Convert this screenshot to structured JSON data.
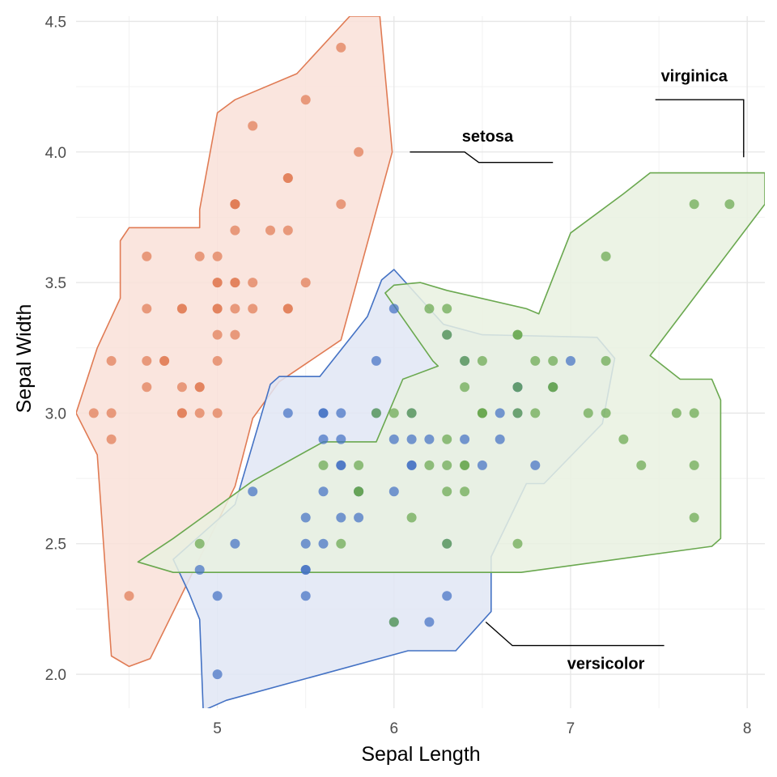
{
  "chart_data": {
    "type": "scatter",
    "title": "",
    "xlabel": "Sepal Length",
    "ylabel": "Sepal Width",
    "xlim": [
      4.2,
      8.1
    ],
    "ylim": [
      1.87,
      4.52
    ],
    "x_ticks": [
      "5",
      "6",
      "7",
      "8"
    ],
    "x_tick_values": [
      5,
      6,
      7,
      8
    ],
    "y_ticks": [
      "2.0",
      "2.5",
      "3.0",
      "3.5",
      "4.0",
      "4.5"
    ],
    "y_tick_values": [
      2.0,
      2.5,
      3.0,
      3.5,
      4.0,
      4.5
    ],
    "grid": true,
    "legend": "none",
    "series": [
      {
        "name": "setosa",
        "color": "#E07B54",
        "points": [
          [
            5.1,
            3.5
          ],
          [
            4.9,
            3.0
          ],
          [
            4.7,
            3.2
          ],
          [
            4.6,
            3.1
          ],
          [
            5.0,
            3.6
          ],
          [
            5.4,
            3.9
          ],
          [
            4.6,
            3.4
          ],
          [
            5.0,
            3.4
          ],
          [
            4.4,
            2.9
          ],
          [
            4.9,
            3.1
          ],
          [
            5.4,
            3.7
          ],
          [
            4.8,
            3.4
          ],
          [
            4.8,
            3.0
          ],
          [
            4.3,
            3.0
          ],
          [
            5.8,
            4.0
          ],
          [
            5.7,
            4.4
          ],
          [
            5.4,
            3.9
          ],
          [
            5.1,
            3.5
          ],
          [
            5.7,
            3.8
          ],
          [
            5.1,
            3.8
          ],
          [
            5.4,
            3.4
          ],
          [
            5.1,
            3.7
          ],
          [
            4.6,
            3.6
          ],
          [
            5.1,
            3.3
          ],
          [
            4.8,
            3.4
          ],
          [
            5.0,
            3.0
          ],
          [
            5.0,
            3.4
          ],
          [
            5.2,
            3.5
          ],
          [
            5.2,
            3.4
          ],
          [
            4.7,
            3.2
          ],
          [
            4.8,
            3.1
          ],
          [
            5.4,
            3.4
          ],
          [
            5.2,
            4.1
          ],
          [
            5.5,
            4.2
          ],
          [
            4.9,
            3.1
          ],
          [
            5.0,
            3.2
          ],
          [
            5.5,
            3.5
          ],
          [
            4.9,
            3.6
          ],
          [
            4.4,
            3.0
          ],
          [
            5.1,
            3.4
          ],
          [
            5.0,
            3.5
          ],
          [
            4.5,
            2.3
          ],
          [
            4.4,
            3.2
          ],
          [
            5.0,
            3.5
          ],
          [
            5.1,
            3.8
          ],
          [
            4.8,
            3.0
          ],
          [
            5.1,
            3.8
          ],
          [
            4.6,
            3.2
          ],
          [
            5.3,
            3.7
          ],
          [
            5.0,
            3.3
          ]
        ]
      },
      {
        "name": "versicolor",
        "color": "#4472C4",
        "points": [
          [
            7.0,
            3.2
          ],
          [
            6.4,
            3.2
          ],
          [
            6.9,
            3.1
          ],
          [
            5.5,
            2.3
          ],
          [
            6.5,
            2.8
          ],
          [
            5.7,
            2.8
          ],
          [
            6.3,
            3.3
          ],
          [
            4.9,
            2.4
          ],
          [
            6.6,
            2.9
          ],
          [
            5.2,
            2.7
          ],
          [
            5.0,
            2.0
          ],
          [
            5.9,
            3.0
          ],
          [
            6.0,
            2.2
          ],
          [
            6.1,
            2.9
          ],
          [
            5.6,
            2.9
          ],
          [
            6.7,
            3.1
          ],
          [
            5.6,
            3.0
          ],
          [
            5.8,
            2.7
          ],
          [
            6.2,
            2.2
          ],
          [
            5.6,
            2.5
          ],
          [
            5.9,
            3.2
          ],
          [
            6.1,
            2.8
          ],
          [
            6.3,
            2.5
          ],
          [
            6.1,
            2.8
          ],
          [
            6.4,
            2.9
          ],
          [
            6.6,
            3.0
          ],
          [
            6.8,
            2.8
          ],
          [
            6.7,
            3.0
          ],
          [
            6.0,
            2.9
          ],
          [
            5.7,
            2.6
          ],
          [
            5.5,
            2.4
          ],
          [
            5.5,
            2.4
          ],
          [
            5.8,
            2.7
          ],
          [
            6.0,
            2.7
          ],
          [
            5.4,
            3.0
          ],
          [
            6.0,
            3.4
          ],
          [
            6.7,
            3.1
          ],
          [
            6.3,
            2.3
          ],
          [
            5.6,
            3.0
          ],
          [
            5.5,
            2.5
          ],
          [
            5.5,
            2.6
          ],
          [
            6.1,
            3.0
          ],
          [
            5.8,
            2.6
          ],
          [
            5.0,
            2.3
          ],
          [
            5.6,
            2.7
          ],
          [
            5.7,
            3.0
          ],
          [
            5.7,
            2.9
          ],
          [
            6.2,
            2.9
          ],
          [
            5.1,
            2.5
          ],
          [
            5.7,
            2.8
          ]
        ]
      },
      {
        "name": "virginica",
        "color": "#6AA84F",
        "points": [
          [
            6.3,
            3.3
          ],
          [
            5.8,
            2.7
          ],
          [
            7.1,
            3.0
          ],
          [
            6.3,
            2.9
          ],
          [
            6.5,
            3.0
          ],
          [
            7.6,
            3.0
          ],
          [
            4.9,
            2.5
          ],
          [
            7.3,
            2.9
          ],
          [
            6.7,
            2.5
          ],
          [
            7.2,
            3.6
          ],
          [
            6.5,
            3.2
          ],
          [
            6.4,
            2.7
          ],
          [
            6.8,
            3.0
          ],
          [
            5.7,
            2.5
          ],
          [
            5.8,
            2.8
          ],
          [
            6.4,
            3.2
          ],
          [
            6.5,
            3.0
          ],
          [
            7.7,
            3.8
          ],
          [
            7.7,
            2.6
          ],
          [
            6.0,
            2.2
          ],
          [
            6.9,
            3.2
          ],
          [
            5.6,
            2.8
          ],
          [
            7.7,
            2.8
          ],
          [
            6.3,
            2.7
          ],
          [
            6.7,
            3.3
          ],
          [
            7.2,
            3.2
          ],
          [
            6.2,
            2.8
          ],
          [
            6.1,
            3.0
          ],
          [
            6.4,
            2.8
          ],
          [
            7.2,
            3.0
          ],
          [
            7.4,
            2.8
          ],
          [
            7.9,
            3.8
          ],
          [
            6.4,
            2.8
          ],
          [
            6.3,
            2.8
          ],
          [
            6.1,
            2.6
          ],
          [
            7.7,
            3.0
          ],
          [
            6.3,
            3.4
          ],
          [
            6.4,
            3.1
          ],
          [
            6.0,
            3.0
          ],
          [
            6.9,
            3.1
          ],
          [
            6.7,
            3.1
          ],
          [
            6.9,
            3.1
          ],
          [
            5.8,
            2.7
          ],
          [
            6.8,
            3.2
          ],
          [
            6.7,
            3.3
          ],
          [
            6.7,
            3.0
          ],
          [
            6.3,
            2.5
          ],
          [
            6.5,
            3.0
          ],
          [
            6.2,
            3.4
          ],
          [
            5.9,
            3.0
          ]
        ]
      }
    ],
    "hulls": [
      {
        "series": "setosa",
        "color": "#E07B54",
        "fill": "#F9E1D8",
        "vertices": [
          [
            5.75,
            4.52
          ],
          [
            5.92,
            4.52
          ],
          [
            5.99,
            4.0
          ],
          [
            5.7,
            3.28
          ],
          [
            5.35,
            3.12
          ],
          [
            5.2,
            2.98
          ],
          [
            5.1,
            2.72
          ],
          [
            4.62,
            2.06
          ],
          [
            4.5,
            2.03
          ],
          [
            4.4,
            2.07
          ],
          [
            4.32,
            2.84
          ],
          [
            4.2,
            3.0
          ],
          [
            4.32,
            3.25
          ],
          [
            4.45,
            3.44
          ],
          [
            4.45,
            3.66
          ],
          [
            4.5,
            3.71
          ],
          [
            4.75,
            3.71
          ],
          [
            4.9,
            3.71
          ],
          [
            4.9,
            3.78
          ],
          [
            5.0,
            4.15
          ],
          [
            5.1,
            4.2
          ],
          [
            5.45,
            4.3
          ]
        ]
      },
      {
        "series": "versicolor",
        "color": "#4472C4",
        "fill": "#E0E6F5",
        "vertices": [
          [
            6.0,
            3.55
          ],
          [
            5.93,
            3.51
          ],
          [
            5.85,
            3.37
          ],
          [
            5.58,
            3.14
          ],
          [
            5.35,
            3.14
          ],
          [
            5.3,
            3.11
          ],
          [
            5.1,
            2.65
          ],
          [
            4.75,
            2.44
          ],
          [
            4.84,
            2.31
          ],
          [
            4.9,
            2.21
          ],
          [
            4.92,
            1.86
          ],
          [
            4.95,
            1.87
          ],
          [
            5.05,
            1.9
          ],
          [
            6.08,
            2.09
          ],
          [
            6.35,
            2.09
          ],
          [
            6.55,
            2.24
          ],
          [
            6.55,
            2.45
          ],
          [
            6.75,
            2.73
          ],
          [
            6.85,
            2.73
          ],
          [
            7.18,
            2.96
          ],
          [
            7.25,
            3.21
          ],
          [
            7.15,
            3.29
          ],
          [
            6.5,
            3.3
          ],
          [
            6.28,
            3.34
          ]
        ]
      },
      {
        "series": "virginica",
        "color": "#6AA84F",
        "fill": "#E9F1E1",
        "vertices": [
          [
            7.53,
            3.92
          ],
          [
            8.1,
            3.92
          ],
          [
            8.1,
            3.8
          ],
          [
            7.45,
            3.22
          ],
          [
            7.62,
            3.13
          ],
          [
            7.8,
            3.13
          ],
          [
            7.85,
            3.05
          ],
          [
            7.85,
            2.52
          ],
          [
            7.8,
            2.49
          ],
          [
            6.72,
            2.39
          ],
          [
            5.55,
            2.39
          ],
          [
            4.92,
            2.39
          ],
          [
            4.75,
            2.39
          ],
          [
            4.55,
            2.43
          ],
          [
            4.75,
            2.52
          ],
          [
            5.2,
            2.74
          ],
          [
            5.6,
            2.89
          ],
          [
            5.9,
            2.89
          ],
          [
            6.05,
            3.13
          ],
          [
            6.25,
            3.18
          ],
          [
            6.22,
            3.2
          ],
          [
            5.95,
            3.46
          ],
          [
            6.0,
            3.49
          ],
          [
            6.15,
            3.5
          ],
          [
            6.3,
            3.47
          ],
          [
            6.75,
            3.4
          ],
          [
            6.82,
            3.38
          ],
          [
            7.0,
            3.69
          ],
          [
            7.3,
            3.84
          ],
          [
            7.45,
            3.92
          ]
        ]
      }
    ],
    "annotations": [
      {
        "text": "setosa",
        "line": [
          [
            6.09,
            4.0
          ],
          [
            6.4,
            4.0
          ],
          [
            6.48,
            3.96
          ],
          [
            6.9,
            3.96
          ]
        ],
        "label_at": [
          6.53,
          4.04
        ]
      },
      {
        "text": "virginica",
        "line": [
          [
            7.48,
            4.2
          ],
          [
            7.98,
            4.2
          ],
          [
            7.98,
            3.98
          ]
        ],
        "label_at": [
          7.7,
          4.27
        ]
      },
      {
        "text": "versicolor",
        "line": [
          [
            6.52,
            2.2
          ],
          [
            6.67,
            2.11
          ],
          [
            7.53,
            2.11
          ]
        ],
        "label_at": [
          7.2,
          2.02
        ]
      }
    ]
  }
}
